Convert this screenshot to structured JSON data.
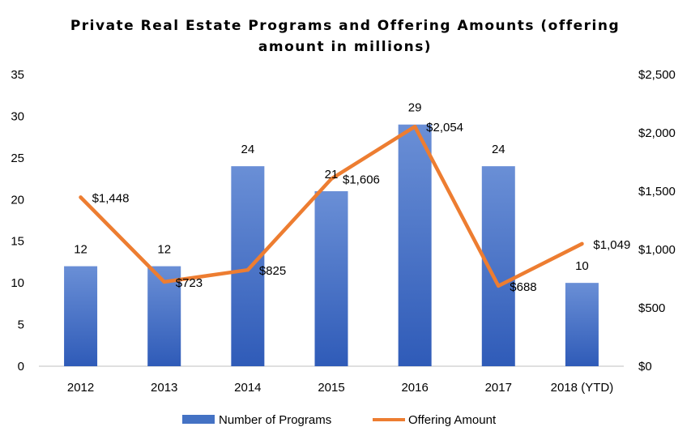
{
  "chart_data": {
    "type": "bar+line",
    "title_lines": [
      "Private Real Estate Programs and Offering Amounts (offering",
      "amount in millions)"
    ],
    "categories": [
      "2012",
      "2013",
      "2014",
      "2015",
      "2016",
      "2017",
      "2018 (YTD)"
    ],
    "series": [
      {
        "name": "Number of Programs",
        "type": "bar",
        "axis": "left",
        "color": "#4472C4",
        "values": [
          12,
          12,
          24,
          21,
          29,
          24,
          10
        ],
        "labels": [
          "12",
          "12",
          "24",
          "21",
          "29",
          "24",
          "10"
        ]
      },
      {
        "name": "Offering Amount",
        "type": "line",
        "axis": "right",
        "color": "#ED7D31",
        "values": [
          1448,
          723,
          825,
          1606,
          2054,
          688,
          1049
        ],
        "labels": [
          "$1,448",
          "$723",
          "$825",
          "$1,606",
          "$2,054",
          "$688",
          "$1,049"
        ]
      }
    ],
    "y_left": {
      "min": 0,
      "max": 35,
      "ticks": [
        0,
        5,
        10,
        15,
        20,
        25,
        30,
        35
      ],
      "tick_labels": [
        "0",
        "5",
        "10",
        "15",
        "20",
        "25",
        "30",
        "35"
      ]
    },
    "y_right": {
      "min": 0,
      "max": 2500,
      "ticks": [
        0,
        500,
        1000,
        1500,
        2000,
        2500
      ],
      "tick_labels": [
        "$0",
        "$500",
        "$1,000",
        "$1,500",
        "$2,000",
        "$2,500"
      ]
    },
    "grid": false,
    "legend_position": "bottom"
  }
}
